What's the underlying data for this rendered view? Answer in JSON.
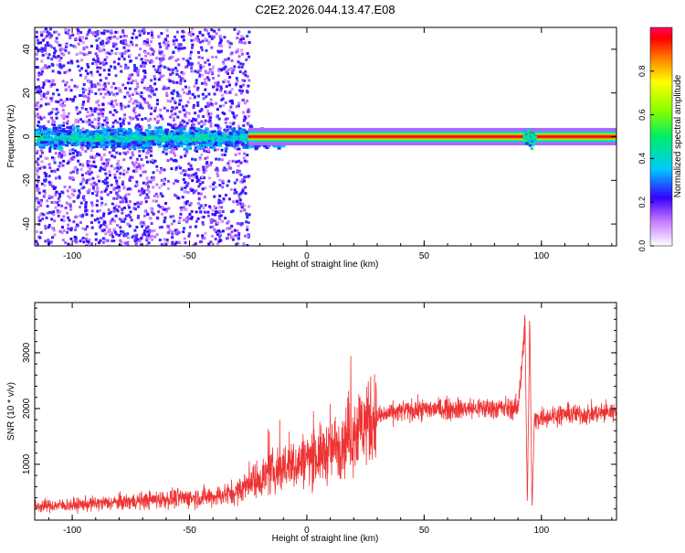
{
  "page_title": "C2E2.2026.044.13.47.E08",
  "chart_data": [
    {
      "type": "heatmap",
      "title": "C2E2.2026.044.13.47.E08",
      "xlabel": "Height of straight line (km)",
      "ylabel": "Frequency (Hz)",
      "xlim": [
        -116,
        132
      ],
      "ylim": [
        -50,
        50
      ],
      "x_ticks": [
        -100,
        -50,
        0,
        50,
        100
      ],
      "y_ticks": [
        -40,
        -20,
        0,
        20,
        40
      ],
      "colorbar": {
        "label": "Normalized spectral amplitude",
        "range": [
          0.0,
          1.0
        ],
        "ticks": [
          0.0,
          0.2,
          0.4,
          0.6,
          0.8
        ],
        "tick_labels": [
          "0.0",
          "0.2",
          "0.4",
          "0.6",
          "0.8"
        ]
      },
      "features": [
        {
          "x_range": [
            -116,
            -25
          ],
          "freq_center": 0,
          "freq_halfwidth": 6,
          "amplitude": 0.3
        },
        {
          "x_range": [
            -25,
            132
          ],
          "freq_center": 0,
          "freq_halfwidth": 1,
          "amplitude": 0.95
        },
        {
          "x_range": [
            92,
            97
          ],
          "freq_center": 0,
          "freq_halfwidth": 6,
          "amplitude": 0.4
        }
      ],
      "grid": false
    },
    {
      "type": "line",
      "xlabel": "Height of straight line (km)",
      "ylabel": "SNR (10 * v/v)",
      "xlim": [
        -116,
        132
      ],
      "ylim": [
        0,
        3900
      ],
      "x_ticks": [
        -100,
        -50,
        0,
        50,
        100
      ],
      "y_ticks": [
        1000,
        2000,
        3000
      ],
      "color": "#ee3333",
      "series": [
        {
          "x": [
            -116,
            -100,
            -80,
            -60,
            -40,
            -30,
            -25,
            -20,
            -15,
            -10,
            -5,
            0,
            5,
            10,
            15,
            20,
            25,
            30,
            40,
            50,
            60,
            70,
            80,
            90,
            93,
            94,
            95,
            96,
            97,
            100,
            110,
            120,
            132
          ],
          "values": [
            250,
            270,
            320,
            380,
            420,
            500,
            650,
            750,
            850,
            950,
            1000,
            1100,
            1150,
            1250,
            1400,
            1600,
            1750,
            1850,
            1950,
            1980,
            2000,
            2000,
            2010,
            2000,
            3500,
            250,
            3600,
            200,
            1800,
            1850,
            1900,
            1900,
            1950
          ]
        }
      ],
      "grid": false
    }
  ]
}
